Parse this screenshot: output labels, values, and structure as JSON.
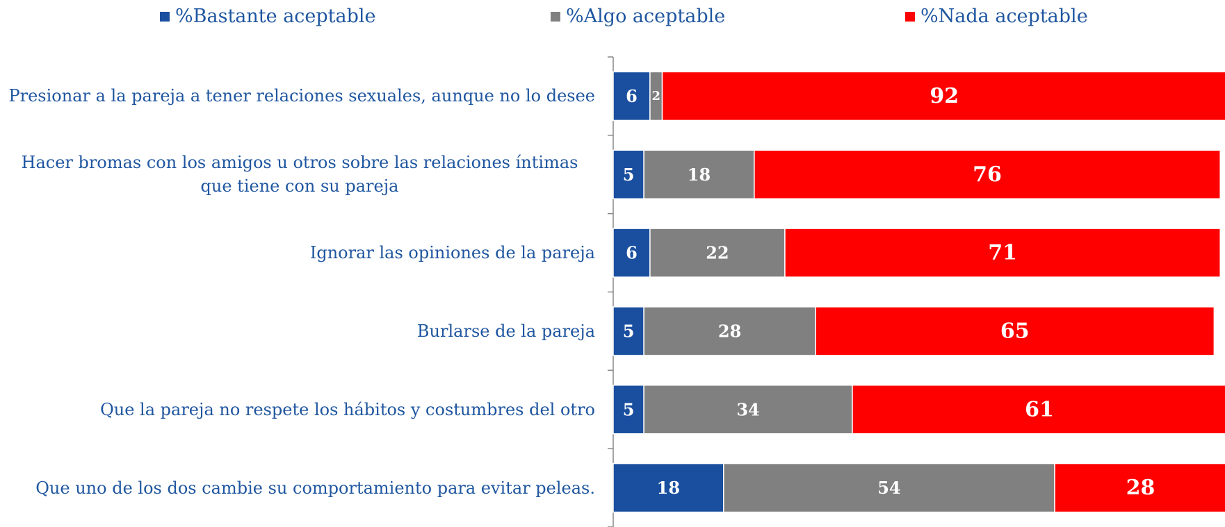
{
  "chart_data": {
    "type": "stacked-bar-horizontal",
    "categories": [
      "Presionar a la pareja a tener relaciones sexuales, aunque no lo desee",
      "Hacer bromas con los amigos u otros sobre las relaciones íntimas que tiene con su pareja",
      "Ignorar las opiniones de la pareja",
      "Burlarse de la pareja",
      "Que la pareja no respete los hábitos y costumbres del otro",
      "Que uno de los dos cambie su comportamiento para evitar peleas."
    ],
    "series": [
      {
        "name": "%Bastante aceptable",
        "color": "#1a4f9f",
        "values": [
          6,
          5,
          6,
          5,
          5,
          18
        ]
      },
      {
        "name": "%Algo aceptable",
        "color": "#808080",
        "values": [
          2,
          18,
          22,
          28,
          34,
          54
        ]
      },
      {
        "name": "%Nada aceptable",
        "color": "#ff0000",
        "values": [
          92,
          76,
          71,
          65,
          61,
          28
        ]
      }
    ],
    "xlim": [
      0,
      100
    ]
  }
}
